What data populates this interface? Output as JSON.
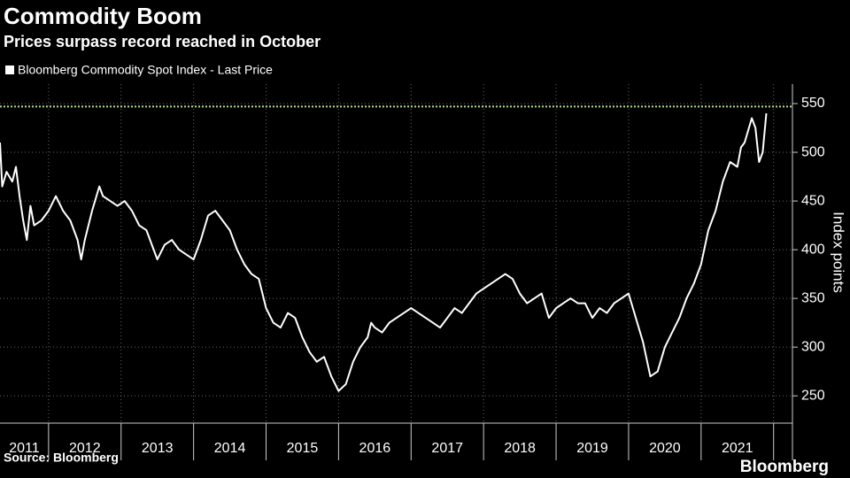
{
  "chart_data": {
    "type": "line",
    "title": "Commodity Boom",
    "subtitle": "Prices surpass record reached in October",
    "y_axis_label": "Index points",
    "source": "Source: Bloomberg",
    "brand": "Bloomberg",
    "xlim": [
      2011.33,
      2022.26
    ],
    "xticks": [
      2012,
      2013,
      2014,
      2015,
      2016,
      2017,
      2018,
      2019,
      2020,
      2021,
      2022
    ],
    "x_band_labels": [
      "2011",
      "2012",
      "2013",
      "2014",
      "2015",
      "2016",
      "2017",
      "2018",
      "2019",
      "2020",
      "2021"
    ],
    "ylim": [
      222,
      570
    ],
    "yticks": [
      250,
      300,
      350,
      400,
      450,
      500,
      550
    ],
    "grid": true,
    "reference_line": {
      "value": 547,
      "color": "#b5d98a"
    },
    "series": [
      {
        "name": "Bloomberg Commodity Spot Index - Last Price",
        "color": "#ffffff",
        "x": [
          2011.33,
          2011.36,
          2011.42,
          2011.5,
          2011.55,
          2011.6,
          2011.65,
          2011.7,
          2011.75,
          2011.8,
          2011.9,
          2012.0,
          2012.1,
          2012.2,
          2012.3,
          2012.4,
          2012.45,
          2012.5,
          2012.6,
          2012.7,
          2012.75,
          2012.85,
          2012.95,
          2013.05,
          2013.15,
          2013.25,
          2013.35,
          2013.45,
          2013.5,
          2013.6,
          2013.7,
          2013.8,
          2013.9,
          2014.0,
          2014.1,
          2014.2,
          2014.3,
          2014.4,
          2014.5,
          2014.6,
          2014.7,
          2014.8,
          2014.9,
          2015.0,
          2015.1,
          2015.2,
          2015.3,
          2015.4,
          2015.5,
          2015.6,
          2015.7,
          2015.8,
          2015.9,
          2016.0,
          2016.1,
          2016.2,
          2016.3,
          2016.4,
          2016.45,
          2016.5,
          2016.6,
          2016.7,
          2016.8,
          2016.9,
          2017.0,
          2017.1,
          2017.2,
          2017.3,
          2017.4,
          2017.5,
          2017.6,
          2017.7,
          2017.8,
          2017.9,
          2018.0,
          2018.1,
          2018.2,
          2018.3,
          2018.4,
          2018.5,
          2018.6,
          2018.7,
          2018.8,
          2018.9,
          2019.0,
          2019.1,
          2019.2,
          2019.3,
          2019.4,
          2019.5,
          2019.6,
          2019.7,
          2019.8,
          2019.9,
          2020.0,
          2020.1,
          2020.2,
          2020.3,
          2020.4,
          2020.5,
          2020.6,
          2020.7,
          2020.8,
          2020.9,
          2021.0,
          2021.1,
          2021.2,
          2021.3,
          2021.4,
          2021.5,
          2021.55,
          2021.6,
          2021.7,
          2021.75,
          2021.8,
          2021.85,
          2021.9
        ],
        "values": [
          510,
          465,
          480,
          470,
          485,
          455,
          430,
          410,
          445,
          425,
          430,
          440,
          455,
          440,
          430,
          410,
          390,
          410,
          440,
          465,
          455,
          450,
          445,
          450,
          440,
          425,
          420,
          400,
          390,
          405,
          410,
          400,
          395,
          390,
          410,
          435,
          440,
          430,
          420,
          400,
          385,
          375,
          370,
          340,
          325,
          320,
          335,
          330,
          310,
          295,
          285,
          290,
          270,
          255,
          262,
          285,
          300,
          310,
          325,
          320,
          315,
          325,
          330,
          335,
          340,
          335,
          330,
          325,
          320,
          330,
          340,
          335,
          345,
          355,
          360,
          365,
          370,
          375,
          370,
          355,
          345,
          350,
          355,
          330,
          340,
          345,
          350,
          345,
          345,
          330,
          340,
          335,
          345,
          350,
          355,
          330,
          305,
          270,
          275,
          300,
          315,
          330,
          350,
          365,
          385,
          420,
          440,
          470,
          490,
          485,
          505,
          510,
          535,
          525,
          490,
          500,
          540
        ]
      }
    ]
  }
}
